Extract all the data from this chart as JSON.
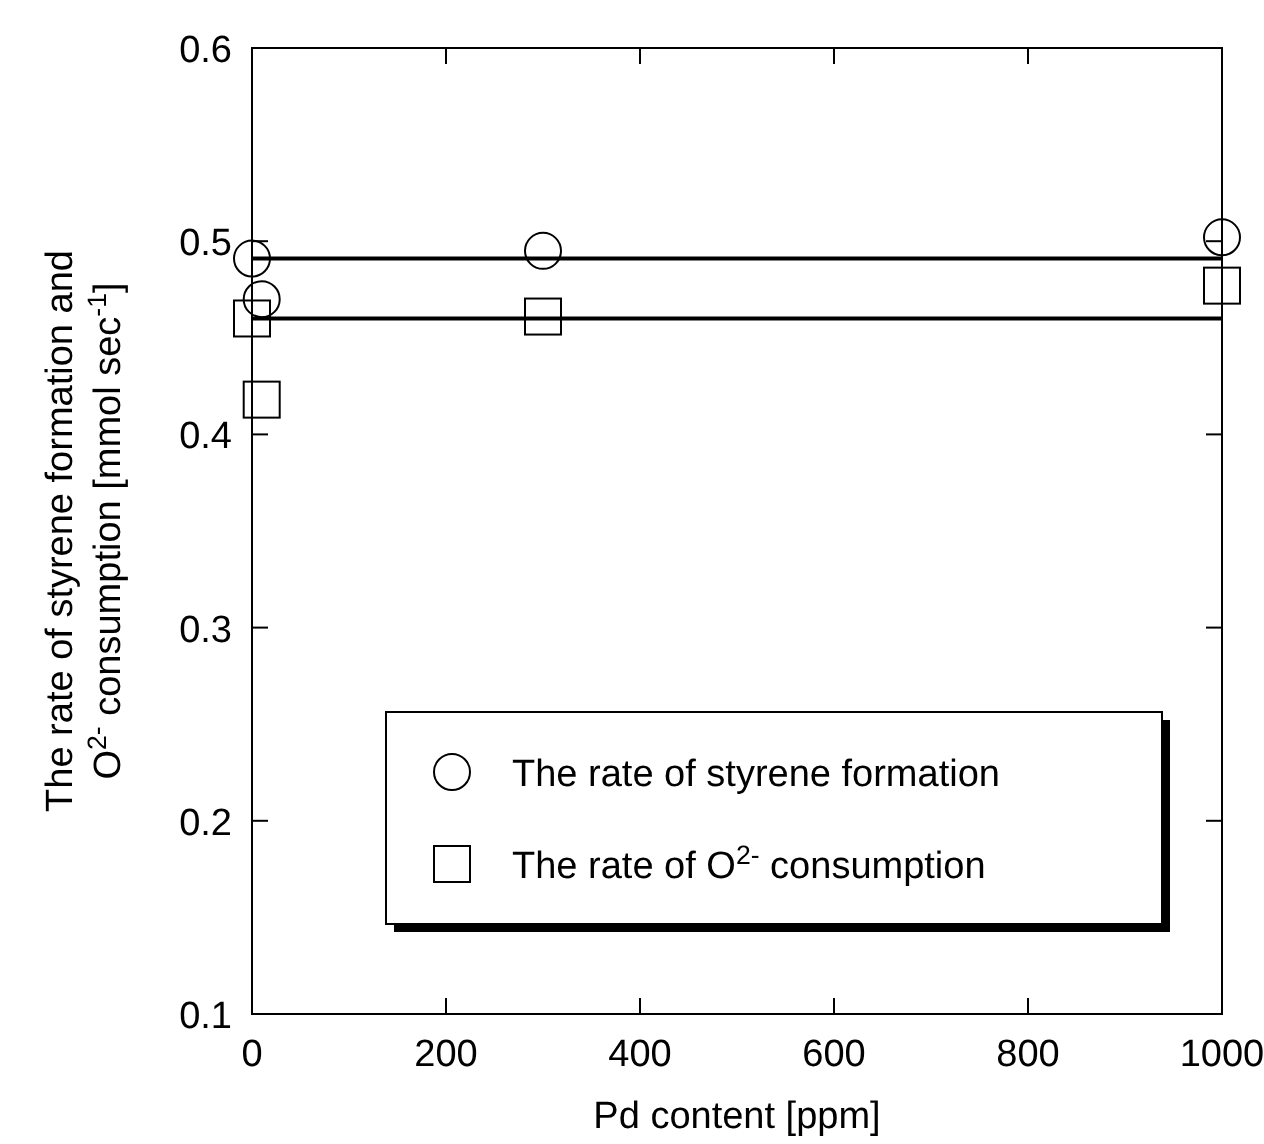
{
  "chart_data": {
    "type": "scatter",
    "xlabel": "Pd content [ppm]",
    "ylabel": "The rate of styrene formation and\nO$^{2-}$ consumption [mmol sec$^{-1}$]",
    "xlim": [
      0,
      1000
    ],
    "xticks": [
      0,
      200,
      400,
      600,
      800,
      1000
    ],
    "ylim": [
      0.1,
      0.6
    ],
    "yticks": [
      0.1,
      0.2,
      0.3,
      0.4,
      0.5,
      0.6
    ],
    "grid": false,
    "legend": "bottom right",
    "series": [
      {
        "name": "The rate of styrene formation",
        "marker": "circle",
        "color": "#000000",
        "x": [
          0,
          10,
          300,
          1000
        ],
        "values": [
          0.491,
          0.47,
          0.495,
          0.502
        ]
      },
      {
        "name": "The rate of O$^{2-}$ consumption",
        "marker": "square",
        "color": "#000000",
        "x": [
          0,
          10,
          300,
          1000
        ],
        "values": [
          0.46,
          0.418,
          0.461,
          0.477
        ]
      },
      {
        "type": "line",
        "color": "#000000",
        "line_style": "solid",
        "x": [
          0,
          1000
        ],
        "values": [
          0.491,
          0.491
        ]
      },
      {
        "type": "line",
        "color": "#000000",
        "line_style": "solid",
        "x": [
          0,
          1000
        ],
        "values": [
          0.46,
          0.46
        ]
      }
    ]
  }
}
